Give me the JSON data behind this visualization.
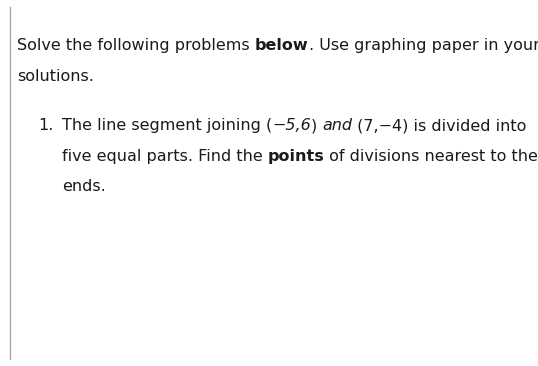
{
  "background_color": "#ffffff",
  "border_color": "#aaaaaa",
  "header_line1_pre": "Solve the following problems ",
  "header_line1_bold": "below",
  "header_line1_post": ". Use graphing paper in your",
  "header_line2": "solutions.",
  "item_number": "1.",
  "item_line1_seg1": "The line segment joining (",
  "item_line1_seg2": "−5,6",
  "item_line1_seg3": ") ",
  "item_line1_seg4": "and",
  "item_line1_seg5": " (7,−4) is divided into",
  "item_line2_seg1": "five equal parts. Find the ",
  "item_line2_seg2": "points",
  "item_line2_seg3": " of divisions nearest to the",
  "item_line3": "ends.",
  "font_size": 11.5,
  "text_color": "#1a1a1a"
}
